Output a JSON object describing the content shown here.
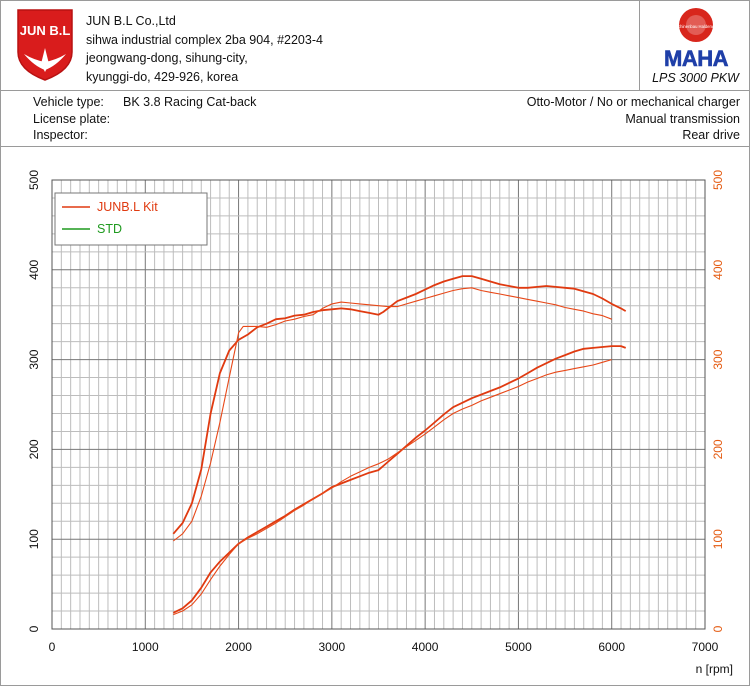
{
  "company": {
    "logo_text": "JUN B.L",
    "name": "JUN B.L Co.,Ltd",
    "address_line1": "sihwa industrial complex 2ba 904, #2203-4",
    "address_line2": "jeongwang-dong, sihung-city,",
    "address_line3": "kyunggi-do, 429-926, korea"
  },
  "maha": {
    "logo_text": "MAHA",
    "badge_text": "Maschinenbau Haldenwang",
    "model": "LPS 3000 PKW"
  },
  "vehicle": {
    "type_label": "Vehicle type:",
    "type_value": "BK 3.8 Racing Cat-back",
    "plate_label": "License plate:",
    "inspector_label": "Inspector:",
    "engine": "Otto-Motor / No or mechanical charger",
    "transmission": "Manual transmission",
    "drive": "Rear drive"
  },
  "chart_data": {
    "type": "line",
    "xlabel": "n [rpm]",
    "xlim": [
      0,
      7000
    ],
    "ylim": [
      0,
      500
    ],
    "x_ticks": [
      0,
      1000,
      2000,
      3000,
      4000,
      5000,
      6000,
      7000
    ],
    "y_ticks": [
      0,
      100,
      200,
      300,
      400,
      500
    ],
    "grid": true,
    "legend_position": "top-left",
    "series": [
      {
        "name": "JUNB.L Kit",
        "color": "#e03a10",
        "curves": [
          [
            [
              1300,
              106
            ],
            [
              1400,
              118
            ],
            [
              1500,
              140
            ],
            [
              1600,
              178
            ],
            [
              1700,
              240
            ],
            [
              1800,
              285
            ],
            [
              1900,
              310
            ],
            [
              2000,
              322
            ],
            [
              2100,
              328
            ],
            [
              2200,
              336
            ],
            [
              2300,
              340
            ],
            [
              2400,
              345
            ],
            [
              2500,
              346
            ],
            [
              2600,
              349
            ],
            [
              2700,
              350
            ],
            [
              2800,
              353
            ],
            [
              2900,
              355
            ],
            [
              3000,
              356
            ],
            [
              3100,
              357
            ],
            [
              3200,
              356
            ],
            [
              3300,
              354
            ],
            [
              3400,
              352
            ],
            [
              3500,
              350
            ],
            [
              3550,
              353
            ],
            [
              3700,
              365
            ],
            [
              3800,
              369
            ],
            [
              3900,
              373
            ],
            [
              4000,
              378
            ],
            [
              4100,
              383
            ],
            [
              4200,
              387
            ],
            [
              4300,
              390
            ],
            [
              4400,
              393
            ],
            [
              4500,
              393
            ],
            [
              4600,
              390
            ],
            [
              4700,
              387
            ],
            [
              4800,
              384
            ],
            [
              4900,
              382
            ],
            [
              5000,
              380
            ],
            [
              5100,
              380
            ],
            [
              5200,
              381
            ],
            [
              5300,
              382
            ],
            [
              5400,
              381
            ],
            [
              5500,
              380
            ],
            [
              5600,
              379
            ],
            [
              5700,
              376
            ],
            [
              5800,
              373
            ],
            [
              5900,
              368
            ],
            [
              6000,
              362
            ],
            [
              6100,
              357
            ],
            [
              6150,
              354
            ]
          ],
          [
            [
              1300,
              18
            ],
            [
              1400,
              23
            ],
            [
              1500,
              32
            ],
            [
              1600,
              46
            ],
            [
              1700,
              63
            ],
            [
              1800,
              75
            ],
            [
              1900,
              85
            ],
            [
              2000,
              95
            ],
            [
              2100,
              102
            ],
            [
              2200,
              108
            ],
            [
              2300,
              114
            ],
            [
              2400,
              120
            ],
            [
              2500,
              126
            ],
            [
              2600,
              133
            ],
            [
              2700,
              139
            ],
            [
              2800,
              145
            ],
            [
              2900,
              151
            ],
            [
              3000,
              158
            ],
            [
              3100,
              162
            ],
            [
              3200,
              166
            ],
            [
              3300,
              170
            ],
            [
              3400,
              174
            ],
            [
              3500,
              177
            ],
            [
              3600,
              186
            ],
            [
              3700,
              195
            ],
            [
              3800,
              204
            ],
            [
              3900,
              213
            ],
            [
              4000,
              221
            ],
            [
              4100,
              230
            ],
            [
              4200,
              239
            ],
            [
              4300,
              247
            ],
            [
              4400,
              252
            ],
            [
              4500,
              257
            ],
            [
              4600,
              261
            ],
            [
              4700,
              265
            ],
            [
              4800,
              269
            ],
            [
              4900,
              274
            ],
            [
              5000,
              279
            ],
            [
              5100,
              285
            ],
            [
              5200,
              291
            ],
            [
              5300,
              296
            ],
            [
              5400,
              301
            ],
            [
              5500,
              305
            ],
            [
              5600,
              309
            ],
            [
              5700,
              312
            ],
            [
              5800,
              313
            ],
            [
              5900,
              314
            ],
            [
              6000,
              315
            ],
            [
              6100,
              315
            ],
            [
              6150,
              313
            ]
          ]
        ]
      },
      {
        "name": "STD",
        "color": "#e84818",
        "curves": [
          [
            [
              1300,
              98
            ],
            [
              1400,
              106
            ],
            [
              1500,
              120
            ],
            [
              1600,
              148
            ],
            [
              1700,
              185
            ],
            [
              1800,
              230
            ],
            [
              1900,
              280
            ],
            [
              2000,
              330
            ],
            [
              2050,
              337
            ],
            [
              2200,
              337
            ],
            [
              2300,
              336
            ],
            [
              2400,
              339
            ],
            [
              2500,
              343
            ],
            [
              2600,
              345
            ],
            [
              2700,
              348
            ],
            [
              2800,
              350
            ],
            [
              2900,
              357
            ],
            [
              3000,
              362
            ],
            [
              3100,
              364
            ],
            [
              3200,
              363
            ],
            [
              3300,
              362
            ],
            [
              3400,
              361
            ],
            [
              3500,
              360
            ],
            [
              3600,
              359
            ],
            [
              3700,
              359
            ],
            [
              3800,
              362
            ],
            [
              3900,
              365
            ],
            [
              4000,
              368
            ],
            [
              4100,
              371
            ],
            [
              4200,
              374
            ],
            [
              4300,
              377
            ],
            [
              4400,
              379
            ],
            [
              4500,
              380
            ],
            [
              4600,
              377
            ],
            [
              4700,
              375
            ],
            [
              4800,
              373
            ],
            [
              4900,
              371
            ],
            [
              5000,
              369
            ],
            [
              5100,
              367
            ],
            [
              5200,
              365
            ],
            [
              5300,
              363
            ],
            [
              5400,
              361
            ],
            [
              5500,
              358
            ],
            [
              5600,
              356
            ],
            [
              5700,
              354
            ],
            [
              5800,
              351
            ],
            [
              5900,
              349
            ],
            [
              6000,
              345
            ]
          ],
          [
            [
              1300,
              16
            ],
            [
              1400,
              20
            ],
            [
              1500,
              27
            ],
            [
              1600,
              39
            ],
            [
              1700,
              55
            ],
            [
              1800,
              70
            ],
            [
              1900,
              83
            ],
            [
              2000,
              95
            ],
            [
              2100,
              101
            ],
            [
              2200,
              106
            ],
            [
              2300,
              112
            ],
            [
              2400,
              118
            ],
            [
              2500,
              125
            ],
            [
              2600,
              132
            ],
            [
              2700,
              138
            ],
            [
              2800,
              145
            ],
            [
              2900,
              151
            ],
            [
              3000,
              157
            ],
            [
              3100,
              164
            ],
            [
              3200,
              170
            ],
            [
              3300,
              175
            ],
            [
              3400,
              180
            ],
            [
              3500,
              184
            ],
            [
              3600,
              189
            ],
            [
              3700,
              196
            ],
            [
              3800,
              203
            ],
            [
              3900,
              210
            ],
            [
              4000,
              217
            ],
            [
              4100,
              225
            ],
            [
              4200,
              233
            ],
            [
              4300,
              240
            ],
            [
              4400,
              245
            ],
            [
              4500,
              249
            ],
            [
              4600,
              254
            ],
            [
              4700,
              258
            ],
            [
              4800,
              262
            ],
            [
              4900,
              266
            ],
            [
              5000,
              270
            ],
            [
              5100,
              275
            ],
            [
              5200,
              279
            ],
            [
              5300,
              283
            ],
            [
              5400,
              286
            ],
            [
              5500,
              288
            ],
            [
              5600,
              290
            ],
            [
              5700,
              292
            ],
            [
              5800,
              294
            ],
            [
              5900,
              297
            ],
            [
              6000,
              300
            ]
          ]
        ]
      }
    ]
  }
}
